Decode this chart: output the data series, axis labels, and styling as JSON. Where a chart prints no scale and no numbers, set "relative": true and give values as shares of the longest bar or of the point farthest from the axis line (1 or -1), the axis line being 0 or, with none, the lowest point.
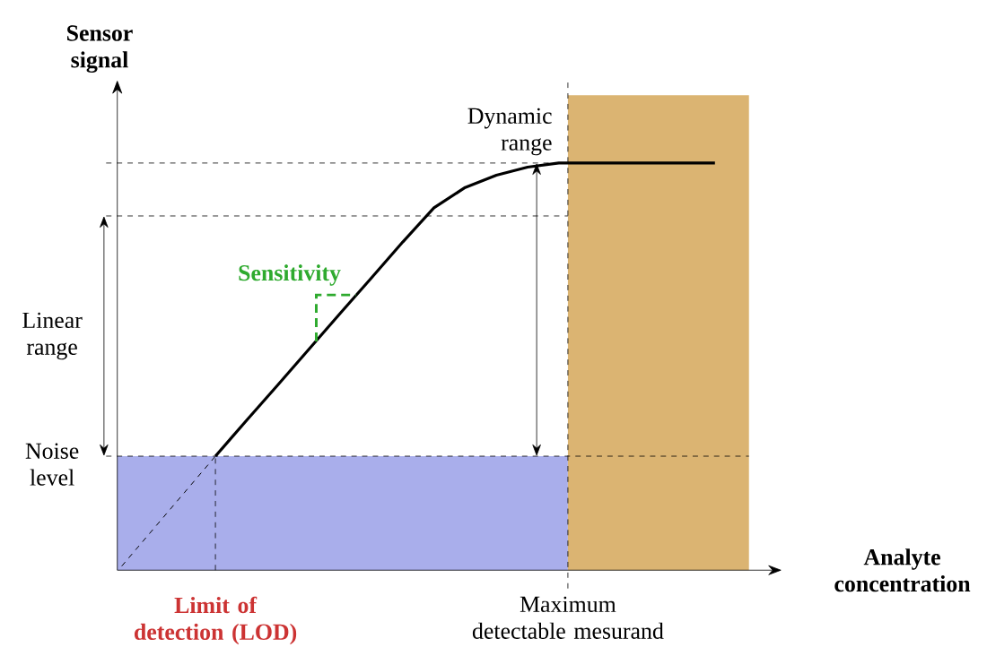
{
  "chart_data": {
    "type": "line",
    "relative": true,
    "xlabel": "Analyte concentration",
    "ylabel": "Sensor signal",
    "categories": [
      null,
      null,
      null,
      null,
      null,
      null,
      null,
      null,
      null,
      null,
      null,
      null,
      null,
      null,
      null,
      null,
      null,
      null,
      null,
      null,
      null
    ],
    "series": [
      {
        "color": "#000000",
        "line_style": "solid",
        "values": [
          null,
          null,
          null,
          0.28,
          0.368,
          0.455,
          0.543,
          0.631,
          0.718,
          0.806,
          0.89,
          0.94,
          0.97,
          0.99,
          1,
          1,
          1,
          1,
          1,
          1,
          null
        ]
      },
      {
        "color": "#000000",
        "line_style": "dashed",
        "values": [
          0.01,
          0.1,
          0.19,
          0.28,
          null,
          null,
          null,
          null,
          null,
          null,
          null,
          null,
          null,
          null,
          null,
          null,
          null,
          null,
          null,
          null,
          null
        ]
      }
    ],
    "bands": [
      {
        "axis": "y",
        "from": 0,
        "to": 0.28,
        "color": "#a9aeeb"
      }
    ],
    "ref_lines": [
      {
        "axis": "y",
        "value": 0.28,
        "label": "Noise level"
      },
      {
        "axis": "y",
        "value": 0.87
      },
      {
        "axis": "y",
        "value": 1
      }
    ],
    "annotations": [
      "Linear range",
      "Dynamic range",
      "Sensitivity",
      "Limit of detection (LOD)",
      "Maximum detectable mesurand"
    ],
    "marker": "none"
  }
}
